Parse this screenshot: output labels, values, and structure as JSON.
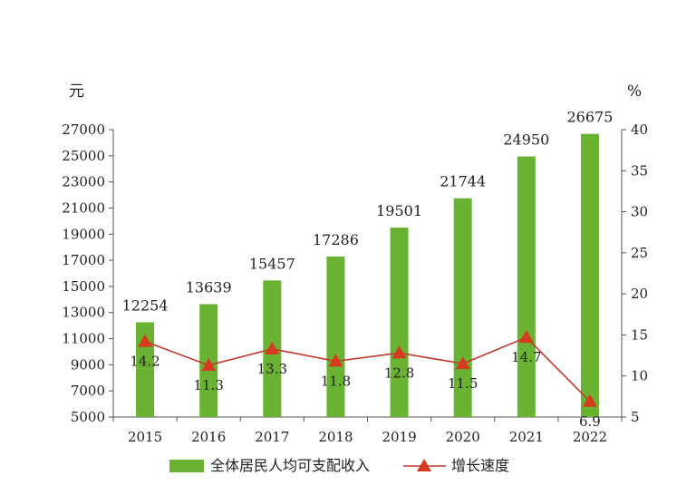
{
  "chart_data": {
    "type": "bar",
    "categories": [
      "2015",
      "2016",
      "2017",
      "2018",
      "2019",
      "2020",
      "2021",
      "2022"
    ],
    "series": [
      {
        "name": "全体居民人均可支配收入",
        "type": "bar",
        "axis": "left",
        "color": "#6ab232",
        "values": [
          12254,
          13639,
          15457,
          17286,
          19501,
          21744,
          24950,
          26675
        ]
      },
      {
        "name": "增长速度",
        "type": "line",
        "axis": "right",
        "color": "#c0392b",
        "marker": "triangle",
        "values": [
          14.2,
          11.3,
          13.3,
          11.8,
          12.8,
          11.5,
          14.7,
          6.9
        ]
      }
    ],
    "y_left": {
      "unit": "元",
      "ylim": [
        5000,
        27000
      ],
      "ticks": [
        5000,
        7000,
        9000,
        11000,
        13000,
        15000,
        17000,
        19000,
        21000,
        23000,
        25000,
        27000
      ]
    },
    "y_right": {
      "unit": "%",
      "ylim": [
        5,
        40
      ],
      "ticks": [
        5,
        10,
        15,
        20,
        25,
        30,
        35,
        40
      ]
    },
    "grid": false,
    "legend": "bottom"
  }
}
